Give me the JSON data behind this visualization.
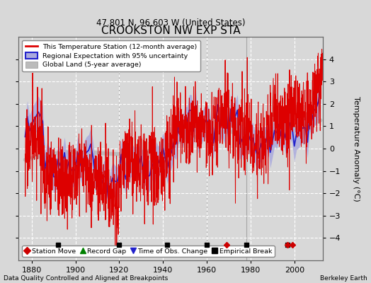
{
  "title": "CROOKSTON NW EXP STA",
  "subtitle": "47.801 N, 96.603 W (United States)",
  "ylabel": "Temperature Anomaly (°C)",
  "xlabel_left": "Data Quality Controlled and Aligned at Breakpoints",
  "xlabel_right": "Berkeley Earth",
  "ylim": [
    -5,
    5
  ],
  "xlim": [
    1874,
    2013
  ],
  "xticks": [
    1880,
    1900,
    1920,
    1940,
    1960,
    1980,
    2000
  ],
  "yticks": [
    -4,
    -3,
    -2,
    -1,
    0,
    1,
    2,
    3,
    4
  ],
  "bg_color": "#d8d8d8",
  "plot_bg_color": "#d8d8d8",
  "grid_color": "#ffffff",
  "station_line_color": "#dd0000",
  "regional_line_color": "#2222cc",
  "regional_fill_color": "#aaaadd",
  "global_line_color": "#bbbbbb",
  "empirical_break_years": [
    1892,
    1920,
    1942,
    1960,
    1978,
    1997
  ],
  "station_move_years": [
    1969,
    1997,
    1999
  ],
  "vertical_line_years": [
    1920,
    1960,
    1978
  ],
  "seed": 17
}
